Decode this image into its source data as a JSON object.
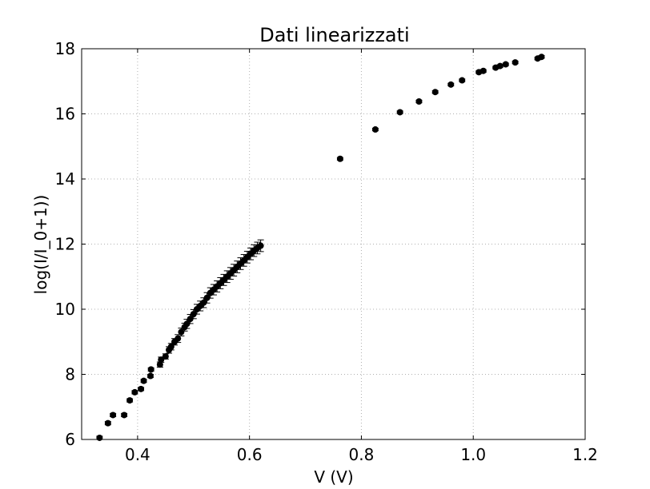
{
  "chart_data": {
    "type": "scatter",
    "title": "Dati linearizzati",
    "xlabel": "V (V)",
    "ylabel": "log(I/I_0+1))",
    "xlim": [
      0.3,
      1.2
    ],
    "ylim": [
      6,
      18
    ],
    "xticks": [
      0.4,
      0.6,
      0.8,
      1.0,
      1.2
    ],
    "xtick_labels": [
      "0.4",
      "0.6",
      "0.8",
      "1.0",
      "1.2"
    ],
    "yticks": [
      6,
      8,
      10,
      12,
      14,
      16,
      18
    ],
    "ytick_labels": [
      "6",
      "8",
      "10",
      "12",
      "14",
      "16",
      "18"
    ],
    "grid": true,
    "marker_color": "#000000",
    "series": [
      {
        "x": [
          0.332,
          0.347,
          0.356,
          0.376,
          0.386,
          0.395,
          0.406,
          0.411,
          0.423,
          0.424,
          0.44,
          0.442,
          0.45,
          0.456,
          0.46,
          0.466,
          0.472,
          0.478,
          0.484,
          0.488,
          0.494,
          0.5,
          0.506,
          0.512,
          0.518,
          0.524,
          0.53,
          0.536,
          0.542,
          0.548,
          0.554,
          0.56,
          0.566,
          0.572,
          0.578,
          0.584,
          0.59,
          0.596,
          0.602,
          0.608,
          0.614,
          0.62,
          0.762,
          0.825,
          0.869,
          0.903,
          0.932,
          0.96,
          0.98,
          1.01,
          1.018,
          1.04,
          1.048,
          1.058,
          1.075,
          1.115,
          1.122
        ],
        "y": [
          6.05,
          6.5,
          6.75,
          6.75,
          7.2,
          7.45,
          7.55,
          7.8,
          7.95,
          8.15,
          8.3,
          8.45,
          8.55,
          8.75,
          8.85,
          9.0,
          9.1,
          9.3,
          9.45,
          9.55,
          9.7,
          9.85,
          10.0,
          10.1,
          10.2,
          10.35,
          10.5,
          10.6,
          10.7,
          10.8,
          10.9,
          11.0,
          11.1,
          11.2,
          11.3,
          11.4,
          11.5,
          11.6,
          11.7,
          11.8,
          11.88,
          11.95,
          14.62,
          15.52,
          16.05,
          16.38,
          16.67,
          16.9,
          17.03,
          17.28,
          17.32,
          17.42,
          17.47,
          17.52,
          17.58,
          17.7,
          17.75
        ],
        "yerr": [
          0.05,
          0.05,
          0.05,
          0.05,
          0.05,
          0.05,
          0.05,
          0.05,
          0.05,
          0.05,
          0.08,
          0.08,
          0.08,
          0.1,
          0.1,
          0.1,
          0.12,
          0.12,
          0.12,
          0.14,
          0.14,
          0.14,
          0.15,
          0.15,
          0.15,
          0.16,
          0.16,
          0.16,
          0.17,
          0.17,
          0.17,
          0.18,
          0.18,
          0.18,
          0.18,
          0.18,
          0.18,
          0.18,
          0.18,
          0.18,
          0.18,
          0.18,
          0.04,
          0.04,
          0.04,
          0.04,
          0.04,
          0.04,
          0.04,
          0.04,
          0.04,
          0.04,
          0.04,
          0.04,
          0.04,
          0.04,
          0.04
        ]
      }
    ]
  }
}
